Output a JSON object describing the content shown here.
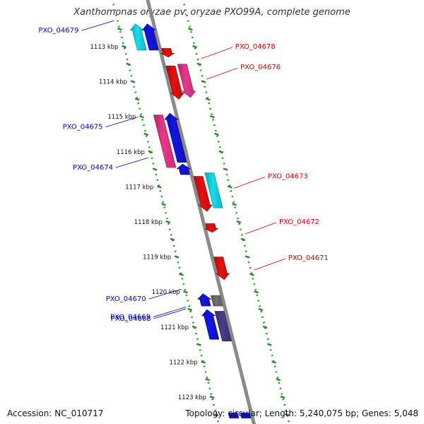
{
  "map": {
    "title": "Xanthomonas oryzae pv. oryzae PXO99A, complete genome",
    "accession": "Accession: NC_010717",
    "summary": "Topology: circular; Length: 5,240,075 bp; Genes: 5,048",
    "colors": {
      "backbone": "#8a8a8a",
      "ruler_tick": "#2e8b2e",
      "label_forward": "#cc0000",
      "label_reverse": "#0000bb",
      "gene_red": "#e81010",
      "gene_pink": "#e8388c",
      "gene_cyan": "#18dcec",
      "gene_blue": "#1414e0",
      "gene_grey": "#707070",
      "gene_slate": "#4a3c8a"
    }
  },
  "ruler_labels": [
    {
      "kbp": 1113,
      "text": "1113 kbp"
    },
    {
      "kbp": 1114,
      "text": "1114 kbp"
    },
    {
      "kbp": 1115,
      "text": "1115 kbp"
    },
    {
      "kbp": 1116,
      "text": "1116 kbp"
    },
    {
      "kbp": 1117,
      "text": "1117 kbp"
    },
    {
      "kbp": 1118,
      "text": "1118 kbp"
    },
    {
      "kbp": 1119,
      "text": "1119 kbp"
    },
    {
      "kbp": 1120,
      "text": "1120 kbp"
    },
    {
      "kbp": 1121,
      "text": "1121 kbp"
    },
    {
      "kbp": 1122,
      "text": "1122 kbp"
    },
    {
      "kbp": 1123,
      "text": "1123 kbp"
    }
  ],
  "genes": [
    {
      "label": "PXO_04679",
      "strand": "-",
      "color": "gene_cyan",
      "lane": 2,
      "start": 1112.35,
      "end": 1113.1,
      "arrow": "up",
      "labelled": true
    },
    {
      "label": "",
      "strand": "-",
      "color": "gene_blue",
      "lane": 1,
      "start": 1112.35,
      "end": 1113.1,
      "arrow": "up",
      "labelled": false
    },
    {
      "label": "PXO_04678",
      "strand": "+",
      "color": "gene_red",
      "lane": 1,
      "start": 1113.05,
      "end": 1113.3,
      "arrow": "down",
      "labelled": true
    },
    {
      "label": "",
      "strand": "+",
      "color": "gene_red",
      "lane": 1,
      "start": 1113.55,
      "end": 1114.5,
      "arrow": "down",
      "labelled": false
    },
    {
      "label": "PXO_04676",
      "strand": "+",
      "color": "gene_pink",
      "lane": 2,
      "start": 1113.5,
      "end": 1114.45,
      "arrow": "down",
      "labelled": true
    },
    {
      "label": "PXO_04675",
      "strand": "-",
      "color": "gene_pink",
      "lane": 2,
      "start": 1114.95,
      "end": 1116.45,
      "arrow": "none",
      "labelled": true
    },
    {
      "label": "",
      "strand": "-",
      "color": "gene_blue",
      "lane": 1,
      "start": 1114.9,
      "end": 1116.3,
      "arrow": "up",
      "labelled": false
    },
    {
      "label": "PXO_04674",
      "strand": "-",
      "color": "gene_blue",
      "lane": 1,
      "start": 1116.35,
      "end": 1116.65,
      "arrow": "up",
      "labelled": true
    },
    {
      "label": "",
      "strand": "+",
      "color": "gene_red",
      "lane": 1,
      "start": 1116.7,
      "end": 1117.7,
      "arrow": "down",
      "labelled": false
    },
    {
      "label": "PXO_04673",
      "strand": "+",
      "color": "gene_cyan",
      "lane": 2,
      "start": 1116.6,
      "end": 1117.6,
      "arrow": "none",
      "labelled": true
    },
    {
      "label": "PXO_04672",
      "strand": "+",
      "color": "gene_red",
      "lane": 1,
      "start": 1118.05,
      "end": 1118.3,
      "arrow": "down",
      "labelled": true
    },
    {
      "label": "PXO_04671",
      "strand": "+",
      "color": "gene_red",
      "lane": 1,
      "start": 1119.0,
      "end": 1119.65,
      "arrow": "down",
      "labelled": true
    },
    {
      "label": "PXO_04670",
      "strand": "-",
      "color": "gene_grey",
      "lane": 1,
      "start": 1120.1,
      "end": 1120.4,
      "arrow": "none",
      "labelled": true
    },
    {
      "label": "",
      "strand": "-",
      "color": "gene_blue",
      "lane": 2,
      "start": 1120.05,
      "end": 1120.4,
      "arrow": "up",
      "labelled": false
    },
    {
      "label": "PXO_04669",
      "strand": "-",
      "color": "gene_blue",
      "lane": 2,
      "start": 1120.5,
      "end": 1121.35,
      "arrow": "up",
      "labelled": true
    },
    {
      "label": "PXO_04668",
      "strand": "-",
      "color": "gene_slate",
      "lane": 1,
      "start": 1120.55,
      "end": 1121.4,
      "arrow": "none",
      "labelled": true
    },
    {
      "label": "",
      "strand": "-",
      "color": "gene_blue",
      "lane": 1,
      "start": 1123.45,
      "end": 1123.6,
      "arrow": "none",
      "labelled": false
    },
    {
      "label": "",
      "strand": "-",
      "color": "gene_blue",
      "lane": 2,
      "start": 1123.45,
      "end": 1123.6,
      "arrow": "none",
      "labelled": false
    }
  ]
}
